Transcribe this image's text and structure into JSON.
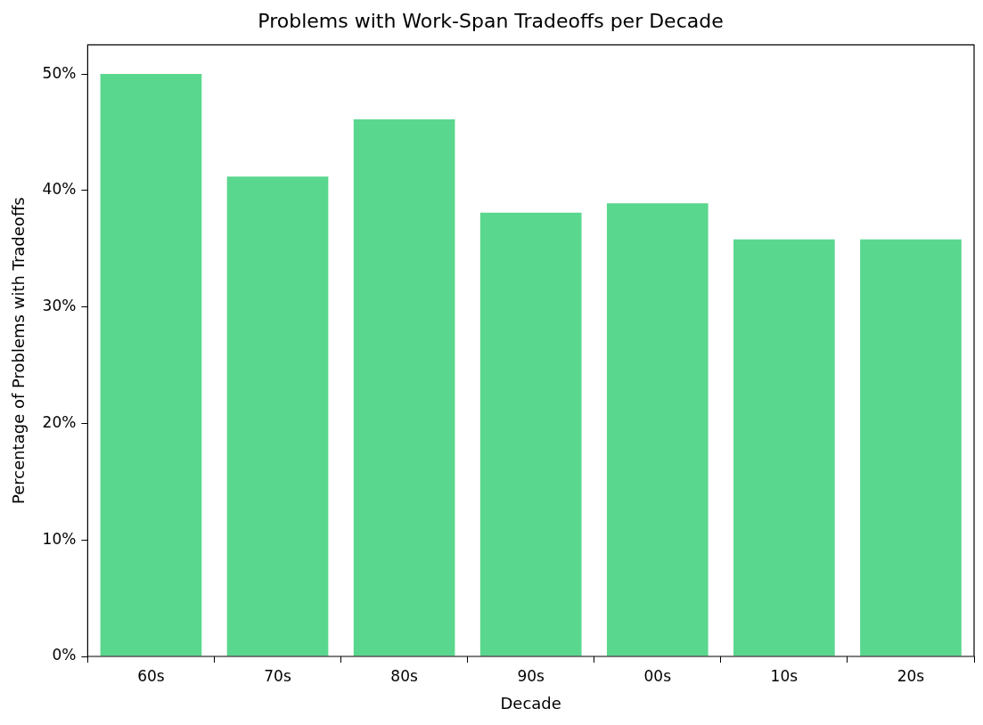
{
  "chart_data": {
    "type": "bar",
    "title": "Problems with Work-Span Tradeoffs per Decade",
    "xlabel": "Decade",
    "ylabel": "Percentage of Problems with Tradeoffs",
    "categories": [
      "60s",
      "70s",
      "80s",
      "90s",
      "00s",
      "10s",
      "20s"
    ],
    "values": [
      50,
      41.2,
      46.1,
      38.1,
      38.9,
      35.8,
      35.8
    ],
    "color": "#5ad78e",
    "ylim": [
      0,
      52.5
    ],
    "yticks": [
      {
        "value": 0,
        "label": "0%"
      },
      {
        "value": 10,
        "label": "10%"
      },
      {
        "value": 20,
        "label": "20%"
      },
      {
        "value": 30,
        "label": "30%"
      },
      {
        "value": 40,
        "label": "40%"
      },
      {
        "value": 50,
        "label": "50%"
      }
    ]
  }
}
